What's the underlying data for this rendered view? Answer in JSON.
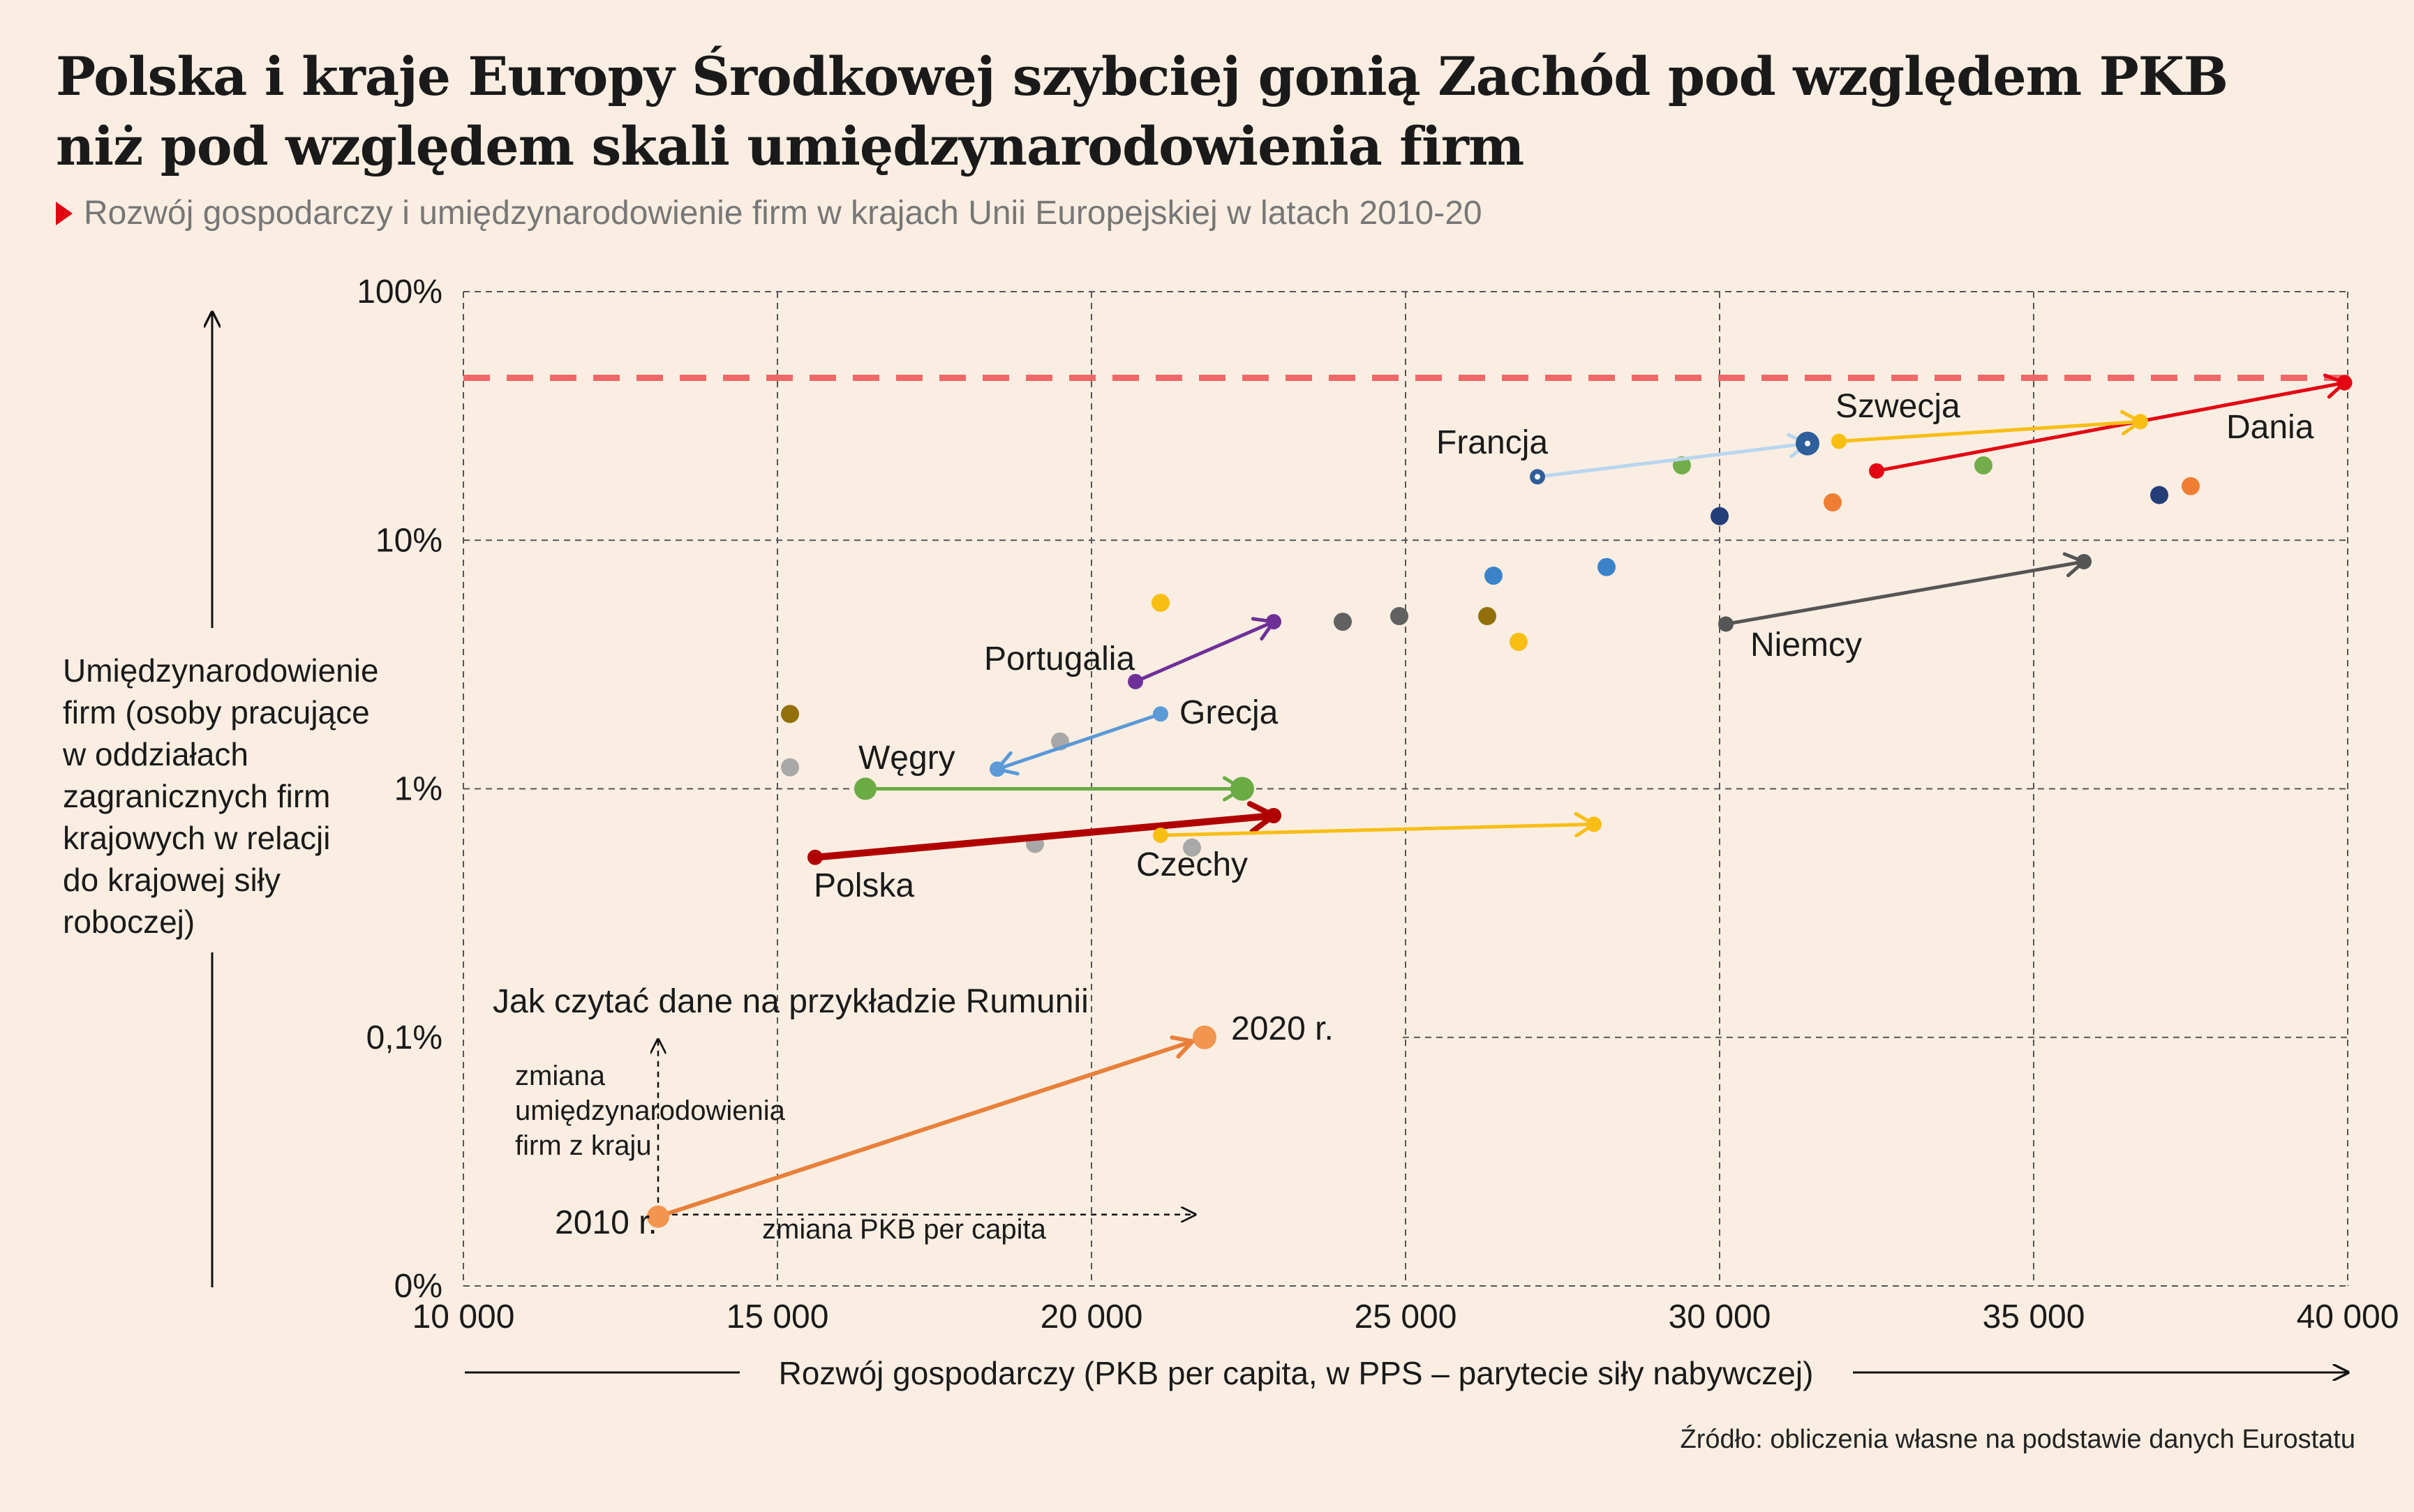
{
  "title_line1": "Polska i kraje Europy Środkowej szybciej gonią Zachód pod względem PKB",
  "title_line2": "niż pod względem skali umiędzynarodowienia firm",
  "subtitle": "Rozwój gospodarczy i umiędzynarodowienie firm w krajach Unii Europejskiej w latach 2010-20",
  "source": "Źródło: obliczenia własne na podstawie danych Eurostatu",
  "colors": {
    "background": "#faeee2",
    "accent_red": "#e20613",
    "reference_line": "#ef6868"
  },
  "chart_data": {
    "type": "scatter",
    "xlabel": "Rozwój gospodarczy (PKB per capita, w PPS – parytecie siły nabywczej)",
    "ylabel": "Umiędzynarodowienie firm (osoby pracujące w oddziałach zagranicznych firm krajowych w relacji do krajowej siły roboczej)",
    "ylabel_lines": [
      "Umiędzynarodowienie",
      "firm (osoby pracujące",
      "w oddziałach",
      "zagranicznych firm",
      "krajowych w relacji",
      "do krajowej siły",
      "roboczej)"
    ],
    "xlim": [
      10000,
      40000
    ],
    "x_ticks": [
      10000,
      15000,
      20000,
      25000,
      30000,
      35000,
      40000
    ],
    "x_tick_labels": [
      "10 000",
      "15 000",
      "20 000",
      "25 000",
      "30 000",
      "35 000",
      "40 000"
    ],
    "y_scale": "log",
    "y_ticks": [
      0,
      0.1,
      1,
      10,
      100
    ],
    "y_tick_labels": [
      "0%",
      "0,1%",
      "1%",
      "10%",
      "100%"
    ],
    "grid": true,
    "reference_line": {
      "y": 45,
      "style": "dashed"
    },
    "arrows": [
      {
        "label": "Dania",
        "color": "#e30613",
        "from": [
          32500,
          19
        ],
        "to": [
          39950,
          43
        ],
        "width": 5
      },
      {
        "label": "Szwecja",
        "color": "#f8be14",
        "from": [
          31900,
          25
        ],
        "to": [
          36700,
          30
        ],
        "width": 5
      },
      {
        "label": "Francja",
        "color": "#b9d6ef",
        "from": [
          27100,
          18
        ],
        "to": [
          31400,
          24.5
        ],
        "width": 5
      },
      {
        "label": "Niemcy",
        "color": "#555555",
        "from": [
          30100,
          4.6
        ],
        "to": [
          35800,
          8.2
        ],
        "width": 5
      },
      {
        "label": "Portugalia",
        "color": "#6e3098",
        "from": [
          20700,
          2.7
        ],
        "to": [
          22900,
          4.7
        ],
        "width": 5
      },
      {
        "label": "Grecja",
        "color": "#5b99d7",
        "from": [
          21100,
          2.0
        ],
        "to": [
          18500,
          1.2
        ],
        "width": 5
      },
      {
        "label": "Węgry",
        "color": "#6aab44",
        "from": [
          16400,
          1.0
        ],
        "to": [
          22400,
          1.0
        ],
        "width": 5
      },
      {
        "label": "Polska",
        "color": "#b00000",
        "from": [
          15600,
          0.53
        ],
        "to": [
          22900,
          0.78
        ],
        "width": 10
      },
      {
        "label": "Czechy",
        "color": "#f8be14",
        "from": [
          21100,
          0.65
        ],
        "to": [
          28000,
          0.72
        ],
        "width": 5
      }
    ],
    "points": [
      {
        "x": 29400,
        "y": 20,
        "color": "#72ad4a"
      },
      {
        "x": 34200,
        "y": 20,
        "color": "#72ad4a"
      },
      {
        "x": 30000,
        "y": 12.5,
        "color": "#243e7a"
      },
      {
        "x": 31800,
        "y": 14.2,
        "color": "#ef7e33"
      },
      {
        "x": 37000,
        "y": 15.2,
        "color": "#243e7a"
      },
      {
        "x": 37500,
        "y": 16.5,
        "color": "#ef7e33"
      },
      {
        "x": 28200,
        "y": 7.8,
        "color": "#3a83c9"
      },
      {
        "x": 26400,
        "y": 7.2,
        "color": "#3a83c9"
      },
      {
        "x": 21100,
        "y": 5.6,
        "color": "#f8be14"
      },
      {
        "x": 24000,
        "y": 4.7,
        "color": "#616161"
      },
      {
        "x": 24900,
        "y": 4.95,
        "color": "#616161"
      },
      {
        "x": 26300,
        "y": 4.95,
        "color": "#93700c"
      },
      {
        "x": 26800,
        "y": 3.9,
        "color": "#f8be14"
      },
      {
        "x": 15200,
        "y": 2.0,
        "color": "#93700c"
      },
      {
        "x": 15200,
        "y": 1.22,
        "color": "#a8a8a8"
      },
      {
        "x": 19500,
        "y": 1.55,
        "color": "#a8a8a8"
      },
      {
        "x": 19100,
        "y": 0.6,
        "color": "#a8a8a8"
      },
      {
        "x": 21600,
        "y": 0.58,
        "color": "#a8a8a8"
      }
    ],
    "country_labels": [
      "Francja",
      "Szwecja",
      "Dania",
      "Niemcy",
      "Portugalia",
      "Grecja",
      "Węgry",
      "Polska",
      "Czechy"
    ],
    "inset": {
      "title": "Jak czytać dane na przykładzie Rumunii",
      "start_label": "2010 r.",
      "end_label": "2020 r.",
      "vertical_label_lines": [
        "zmiana",
        "umiędzynarodowienia",
        "firm z kraju"
      ],
      "horizontal_label": "zmiana PKB per capita",
      "arrow_color": "#e8803b",
      "from": [
        13100,
        0.019
      ],
      "to": [
        21800,
        0.1
      ]
    }
  }
}
